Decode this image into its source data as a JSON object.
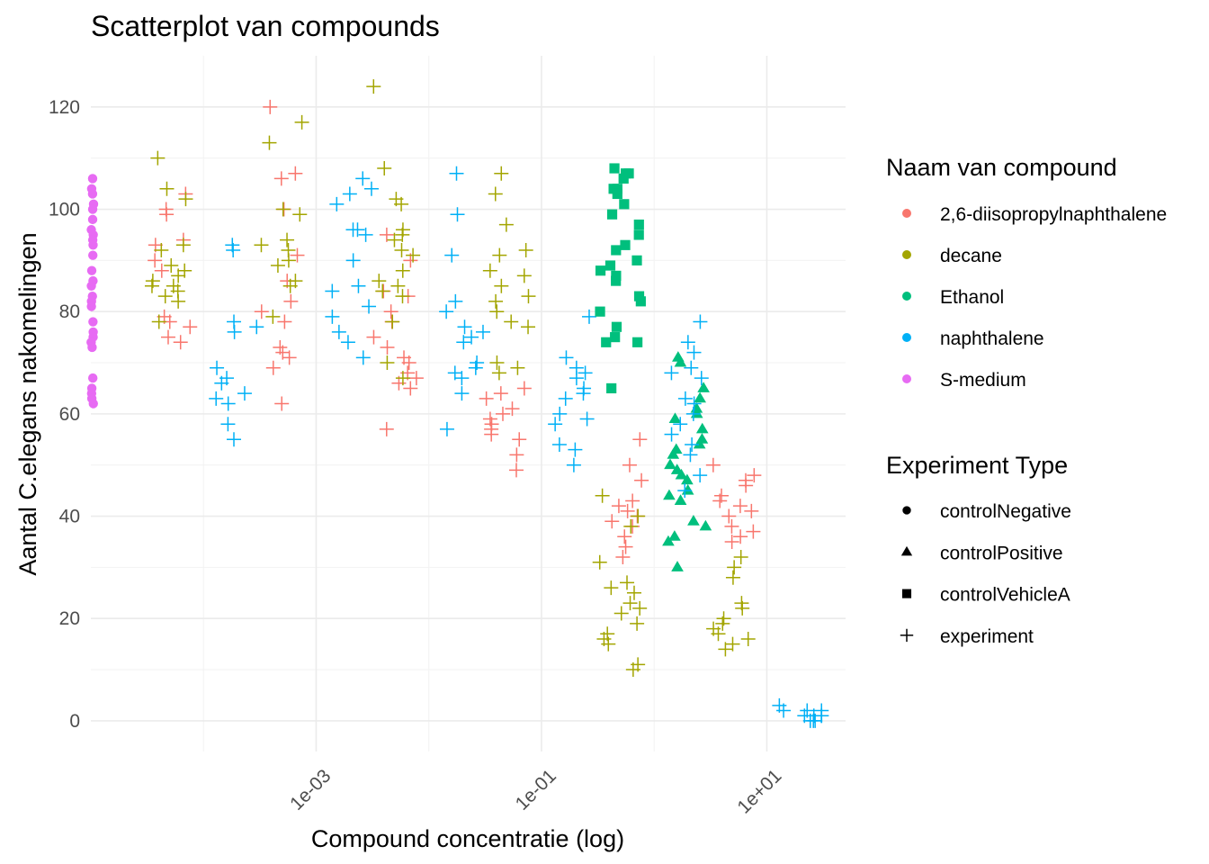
{
  "chart_data": {
    "type": "scatter",
    "title": "Scatterplot van compounds",
    "xlabel": "Compound concentratie (log)",
    "ylabel": "Aantal C.elegans nakomelingen",
    "x_scale": "log10",
    "xlim": [
      1e-05,
      50
    ],
    "ylim": [
      -6,
      130
    ],
    "x_ticks": [
      0.001,
      0.1,
      10
    ],
    "x_tick_labels": [
      "1e-03",
      "1e-01",
      "1e+01"
    ],
    "y_ticks": [
      0,
      20,
      40,
      60,
      80,
      100,
      120
    ],
    "y_tick_labels": [
      "0",
      "20",
      "40",
      "60",
      "80",
      "100",
      "120"
    ],
    "grid": true,
    "colors": {
      "2,6-diisopropylnaphthalene": "#F8766D",
      "decane": "#A3A500",
      "Ethanol": "#00BF7D",
      "naphthalene": "#00B0F6",
      "S-medium": "#E76BF3"
    },
    "legend_color": {
      "title": "Naam van compound",
      "entries": [
        "2,6-diisopropylnaphthalene",
        "decane",
        "Ethanol",
        "naphthalene",
        "S-medium"
      ]
    },
    "legend_shape": {
      "title": "Experiment Type",
      "entries": [
        {
          "label": "controlNegative",
          "shape": "circle"
        },
        {
          "label": "controlPositive",
          "shape": "triangle"
        },
        {
          "label": "controlVehicleA",
          "shape": "square"
        },
        {
          "label": "experiment",
          "shape": "plus"
        }
      ]
    },
    "groups": [
      {
        "compound": "S-medium",
        "type": "controlNegative",
        "x": 1e-05,
        "y": [
          106,
          104,
          103,
          101,
          100,
          98,
          96,
          95,
          94,
          93,
          91,
          88,
          86,
          85,
          83,
          82,
          81,
          78,
          76,
          75,
          74,
          73,
          67,
          65,
          64,
          63,
          62
        ]
      },
      {
        "compound": "2,6-diisopropylnaphthalene",
        "type": "experiment",
        "x": 5e-05,
        "y": [
          103,
          100,
          99,
          94,
          93,
          90,
          88,
          79,
          78,
          77,
          75,
          74
        ]
      },
      {
        "compound": "decane",
        "type": "experiment",
        "x": 5e-05,
        "y": [
          110,
          104,
          102,
          93,
          92,
          89,
          88,
          87,
          86,
          85,
          85,
          84,
          83,
          82,
          78
        ]
      },
      {
        "compound": "naphthalene",
        "type": "experiment",
        "x": 0.0002,
        "y": [
          93,
          92,
          78,
          77,
          76,
          69,
          67,
          66,
          64,
          63,
          62,
          58,
          55
        ]
      },
      {
        "compound": "2,6-diisopropylnaphthalene",
        "type": "experiment",
        "x": 0.0005,
        "y": [
          120,
          107,
          106,
          100,
          91,
          86,
          82,
          80,
          78,
          73,
          72,
          71,
          69,
          62
        ]
      },
      {
        "compound": "decane",
        "type": "experiment",
        "x": 0.0005,
        "y": [
          117,
          113,
          100,
          99,
          94,
          93,
          92,
          90,
          89,
          86,
          85,
          79
        ]
      },
      {
        "compound": "naphthalene",
        "type": "experiment",
        "x": 0.002,
        "y": [
          106,
          104,
          103,
          101,
          96,
          96,
          95,
          90,
          85,
          84,
          81,
          79,
          76,
          74,
          71
        ]
      },
      {
        "compound": "2,6-diisopropylnaphthalene",
        "type": "experiment",
        "x": 0.005,
        "y": [
          95,
          90,
          84,
          83,
          80,
          78,
          75,
          73,
          71,
          70,
          68,
          67,
          66,
          65,
          57
        ]
      },
      {
        "compound": "decane",
        "type": "experiment",
        "x": 0.005,
        "y": [
          124,
          108,
          102,
          101,
          96,
          95,
          94,
          92,
          91,
          88,
          86,
          85,
          84,
          83,
          78,
          70,
          67
        ]
      },
      {
        "compound": "naphthalene",
        "type": "experiment",
        "x": 0.02,
        "y": [
          107,
          99,
          91,
          82,
          80,
          77,
          76,
          75,
          74,
          70,
          69,
          68,
          67,
          64,
          57
        ]
      },
      {
        "compound": "2,6-diisopropylnaphthalene",
        "type": "experiment",
        "x": 0.05,
        "y": [
          65,
          64,
          63,
          61,
          60,
          59,
          58,
          57,
          56,
          55,
          52,
          49
        ]
      },
      {
        "compound": "decane",
        "type": "experiment",
        "x": 0.05,
        "y": [
          107,
          103,
          97,
          92,
          91,
          88,
          87,
          85,
          83,
          82,
          80,
          78,
          77,
          70,
          69,
          68
        ]
      },
      {
        "compound": "naphthalene",
        "type": "experiment",
        "x": 0.2,
        "y": [
          79,
          71,
          69,
          68,
          67,
          65,
          64,
          63,
          60,
          59,
          58,
          54,
          53,
          50
        ]
      },
      {
        "compound": "Ethanol",
        "type": "controlVehicleA",
        "x": 0.5,
        "y": [
          108,
          107,
          107,
          106,
          104,
          104,
          103,
          101,
          99,
          97,
          95,
          93,
          92,
          90,
          89,
          88,
          87,
          86,
          83,
          82,
          80,
          77,
          75,
          74,
          74,
          65
        ]
      },
      {
        "compound": "2,6-diisopropylnaphthalene",
        "type": "experiment",
        "x": 0.5,
        "y": [
          55,
          50,
          47,
          43,
          42,
          41,
          40,
          39,
          38,
          36,
          34,
          32
        ]
      },
      {
        "compound": "decane",
        "type": "experiment",
        "x": 0.5,
        "y": [
          44,
          40,
          38,
          31,
          27,
          26,
          25,
          23,
          22,
          21,
          19,
          17,
          16,
          15,
          11,
          10
        ]
      },
      {
        "compound": "Ethanol",
        "type": "controlPositive",
        "x": 2,
        "y": [
          71,
          70,
          65,
          63,
          61,
          60,
          59,
          57,
          55,
          54,
          53,
          52,
          50,
          49,
          48,
          47,
          45,
          44,
          43,
          39,
          38,
          36,
          35,
          30
        ]
      },
      {
        "compound": "naphthalene",
        "type": "experiment",
        "x": 2,
        "y": [
          78,
          74,
          72,
          69,
          68,
          67,
          63,
          62,
          60,
          58,
          56,
          54,
          52,
          48,
          45
        ]
      },
      {
        "compound": "2,6-diisopropylnaphthalene",
        "type": "experiment",
        "x": 5,
        "y": [
          50,
          48,
          47,
          46,
          44,
          43,
          42,
          41,
          40,
          38,
          37,
          36,
          35
        ]
      },
      {
        "compound": "decane",
        "type": "experiment",
        "x": 5,
        "y": [
          32,
          30,
          28,
          23,
          22,
          20,
          19,
          18,
          17,
          16,
          15,
          14
        ]
      },
      {
        "compound": "naphthalene",
        "type": "experiment",
        "x": 20,
        "y": [
          3,
          2,
          2,
          1,
          1,
          1,
          0,
          0,
          0,
          1,
          2
        ]
      }
    ]
  }
}
